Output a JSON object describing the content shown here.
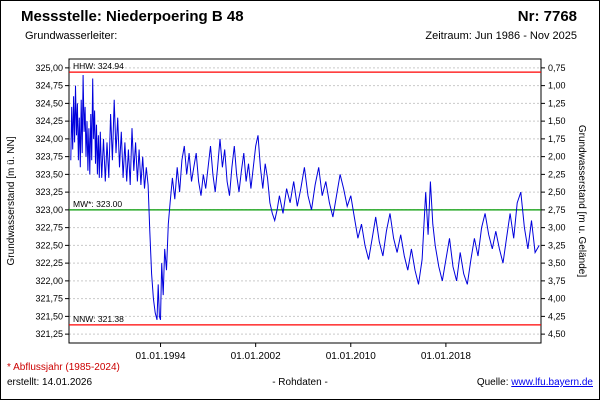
{
  "header": {
    "title": "Messstelle: Niederpoering B 48",
    "number": "Nr: 7768",
    "aquifer_label": "Grundwasserleiter:",
    "period": "Zeitraum: Jun 1986 - Nov 2025"
  },
  "footer": {
    "footnote": "* Abflussjahr (1985-2024)",
    "created": "erstellt: 14.01.2026",
    "data_type": "- Rohdaten -",
    "source_label": "Quelle:",
    "source_link": "www.lfu.bayern.de"
  },
  "chart_data": {
    "type": "line",
    "ylabel_left": "Grundwasserstand [m ü. NN]",
    "ylabel_right": "Grundwasserstand [m u. Gelände]",
    "xlim": [
      1986.3,
      2026.0
    ],
    "ylim": [
      321.125,
      325.125
    ],
    "x_ticks": [
      "01.01.1994",
      "01.01.2002",
      "01.01.2010",
      "01.01.2018"
    ],
    "x_tick_years": [
      1994,
      2002,
      2010,
      2018
    ],
    "y_ticks_left": [
      325.0,
      324.75,
      324.5,
      324.25,
      324.0,
      323.75,
      323.5,
      323.25,
      323.0,
      322.75,
      322.5,
      322.25,
      322.0,
      321.75,
      321.5,
      321.25
    ],
    "y_ticks_right": [
      0.75,
      1.0,
      1.25,
      1.5,
      1.75,
      2.0,
      2.25,
      2.5,
      2.75,
      3.0,
      3.25,
      3.5,
      3.75,
      4.0,
      4.25,
      4.5
    ],
    "grid_color": "#c9c9c9",
    "reference_lines": [
      {
        "name": "HHW",
        "label": "HHW: 324.94",
        "value": 324.94,
        "color": "#ff0000"
      },
      {
        "name": "MW",
        "label": "MW*: 323.00",
        "value": 323.0,
        "color": "#009900"
      },
      {
        "name": "NNW",
        "label": "NNW: 321.38",
        "value": 321.38,
        "color": "#ff0000"
      }
    ],
    "series": [
      {
        "name": "Grundwasserstand Rohdaten",
        "color": "#0000dd",
        "points": [
          [
            1986.45,
            323.7
          ],
          [
            1986.53,
            324.45
          ],
          [
            1986.61,
            323.85
          ],
          [
            1986.69,
            324.6
          ],
          [
            1986.77,
            323.95
          ],
          [
            1986.85,
            324.75
          ],
          [
            1986.93,
            324.05
          ],
          [
            1987.01,
            324.5
          ],
          [
            1987.09,
            323.7
          ],
          [
            1987.17,
            324.3
          ],
          [
            1987.25,
            323.6
          ],
          [
            1987.33,
            324.55
          ],
          [
            1987.41,
            323.8
          ],
          [
            1987.49,
            324.9
          ],
          [
            1987.57,
            324.1
          ],
          [
            1987.65,
            324.45
          ],
          [
            1987.73,
            323.75
          ],
          [
            1987.81,
            324.25
          ],
          [
            1987.89,
            323.55
          ],
          [
            1987.97,
            324.15
          ],
          [
            1988.05,
            323.5
          ],
          [
            1988.13,
            324.35
          ],
          [
            1988.21,
            323.7
          ],
          [
            1988.29,
            324.85
          ],
          [
            1988.37,
            324.0
          ],
          [
            1988.45,
            324.4
          ],
          [
            1988.53,
            323.65
          ],
          [
            1988.61,
            324.2
          ],
          [
            1988.69,
            323.5
          ],
          [
            1988.77,
            324.05
          ],
          [
            1988.85,
            323.45
          ],
          [
            1988.93,
            324.1
          ],
          [
            1989.05,
            323.45
          ],
          [
            1989.2,
            324.0
          ],
          [
            1989.35,
            323.4
          ],
          [
            1989.5,
            323.95
          ],
          [
            1989.65,
            323.45
          ],
          [
            1989.8,
            324.35
          ],
          [
            1989.95,
            323.7
          ],
          [
            1990.1,
            324.55
          ],
          [
            1990.25,
            323.8
          ],
          [
            1990.4,
            324.3
          ],
          [
            1990.55,
            323.6
          ],
          [
            1990.7,
            324.1
          ],
          [
            1990.85,
            323.45
          ],
          [
            1991.0,
            323.95
          ],
          [
            1991.15,
            323.4
          ],
          [
            1991.3,
            323.85
          ],
          [
            1991.45,
            323.35
          ],
          [
            1991.6,
            324.15
          ],
          [
            1991.75,
            323.55
          ],
          [
            1991.9,
            323.95
          ],
          [
            1992.05,
            323.4
          ],
          [
            1992.2,
            323.85
          ],
          [
            1992.35,
            323.35
          ],
          [
            1992.5,
            323.75
          ],
          [
            1992.65,
            323.3
          ],
          [
            1992.8,
            323.6
          ],
          [
            1992.95,
            323.35
          ],
          [
            1993.1,
            322.7
          ],
          [
            1993.25,
            322.1
          ],
          [
            1993.4,
            321.75
          ],
          [
            1993.55,
            321.55
          ],
          [
            1993.7,
            321.45
          ],
          [
            1993.8,
            321.95
          ],
          [
            1993.9,
            321.5
          ],
          [
            1994.0,
            321.45
          ],
          [
            1994.1,
            322.25
          ],
          [
            1994.22,
            321.8
          ],
          [
            1994.35,
            322.45
          ],
          [
            1994.5,
            322.15
          ],
          [
            1994.65,
            322.8
          ],
          [
            1994.8,
            323.1
          ],
          [
            1995.0,
            323.45
          ],
          [
            1995.2,
            323.15
          ],
          [
            1995.4,
            323.6
          ],
          [
            1995.6,
            323.25
          ],
          [
            1995.8,
            323.7
          ],
          [
            1996.0,
            323.9
          ],
          [
            1996.2,
            323.5
          ],
          [
            1996.4,
            323.8
          ],
          [
            1996.6,
            323.4
          ],
          [
            1996.8,
            323.6
          ],
          [
            1997.0,
            323.8
          ],
          [
            1997.2,
            323.4
          ],
          [
            1997.4,
            323.2
          ],
          [
            1997.6,
            323.5
          ],
          [
            1997.8,
            323.3
          ],
          [
            1998.0,
            323.6
          ],
          [
            1998.2,
            323.9
          ],
          [
            1998.4,
            323.5
          ],
          [
            1998.6,
            323.25
          ],
          [
            1998.8,
            323.6
          ],
          [
            1999.0,
            324.0
          ],
          [
            1999.2,
            323.6
          ],
          [
            1999.4,
            323.85
          ],
          [
            1999.6,
            323.4
          ],
          [
            1999.8,
            323.2
          ],
          [
            2000.0,
            323.6
          ],
          [
            2000.2,
            323.9
          ],
          [
            2000.4,
            323.5
          ],
          [
            2000.6,
            323.25
          ],
          [
            2000.8,
            323.55
          ],
          [
            2001.0,
            323.8
          ],
          [
            2001.2,
            323.4
          ],
          [
            2001.4,
            323.65
          ],
          [
            2001.6,
            323.3
          ],
          [
            2001.8,
            323.6
          ],
          [
            2002.0,
            323.9
          ],
          [
            2002.2,
            324.05
          ],
          [
            2002.4,
            323.6
          ],
          [
            2002.6,
            323.3
          ],
          [
            2002.8,
            323.65
          ],
          [
            2003.0,
            323.45
          ],
          [
            2003.2,
            323.1
          ],
          [
            2003.4,
            322.95
          ],
          [
            2003.6,
            322.85
          ],
          [
            2003.8,
            323.0
          ],
          [
            2004.0,
            323.2
          ],
          [
            2004.3,
            322.95
          ],
          [
            2004.6,
            323.3
          ],
          [
            2004.9,
            323.1
          ],
          [
            2005.2,
            323.4
          ],
          [
            2005.5,
            323.05
          ],
          [
            2005.8,
            323.3
          ],
          [
            2006.1,
            323.6
          ],
          [
            2006.4,
            323.2
          ],
          [
            2006.7,
            323.0
          ],
          [
            2007.0,
            323.35
          ],
          [
            2007.3,
            323.6
          ],
          [
            2007.6,
            323.2
          ],
          [
            2007.9,
            323.4
          ],
          [
            2008.2,
            323.1
          ],
          [
            2008.5,
            322.9
          ],
          [
            2008.8,
            323.2
          ],
          [
            2009.1,
            323.5
          ],
          [
            2009.4,
            323.3
          ],
          [
            2009.7,
            323.05
          ],
          [
            2010.0,
            323.2
          ],
          [
            2010.3,
            322.9
          ],
          [
            2010.6,
            322.6
          ],
          [
            2010.9,
            322.8
          ],
          [
            2011.2,
            322.5
          ],
          [
            2011.5,
            322.3
          ],
          [
            2011.8,
            322.6
          ],
          [
            2012.1,
            322.9
          ],
          [
            2012.4,
            322.55
          ],
          [
            2012.7,
            322.35
          ],
          [
            2013.0,
            322.7
          ],
          [
            2013.3,
            322.95
          ],
          [
            2013.6,
            322.6
          ],
          [
            2013.9,
            322.4
          ],
          [
            2014.2,
            322.65
          ],
          [
            2014.5,
            322.35
          ],
          [
            2014.8,
            322.15
          ],
          [
            2015.1,
            322.45
          ],
          [
            2015.4,
            322.15
          ],
          [
            2015.7,
            321.95
          ],
          [
            2016.0,
            322.3
          ],
          [
            2016.3,
            323.25
          ],
          [
            2016.5,
            322.65
          ],
          [
            2016.7,
            323.4
          ],
          [
            2016.9,
            322.8
          ],
          [
            2017.1,
            322.5
          ],
          [
            2017.4,
            322.2
          ],
          [
            2017.7,
            322.0
          ],
          [
            2018.0,
            322.3
          ],
          [
            2018.3,
            322.6
          ],
          [
            2018.6,
            322.2
          ],
          [
            2018.9,
            322.0
          ],
          [
            2019.2,
            322.4
          ],
          [
            2019.5,
            322.1
          ],
          [
            2019.8,
            321.95
          ],
          [
            2020.1,
            322.3
          ],
          [
            2020.4,
            322.6
          ],
          [
            2020.7,
            322.35
          ],
          [
            2021.0,
            322.75
          ],
          [
            2021.3,
            322.95
          ],
          [
            2021.6,
            322.65
          ],
          [
            2021.9,
            322.45
          ],
          [
            2022.2,
            322.7
          ],
          [
            2022.5,
            322.45
          ],
          [
            2022.8,
            322.25
          ],
          [
            2023.1,
            322.6
          ],
          [
            2023.4,
            322.95
          ],
          [
            2023.7,
            322.6
          ],
          [
            2024.0,
            323.1
          ],
          [
            2024.3,
            323.25
          ],
          [
            2024.6,
            322.75
          ],
          [
            2024.9,
            322.45
          ],
          [
            2025.2,
            322.85
          ],
          [
            2025.5,
            322.4
          ],
          [
            2025.85,
            322.5
          ]
        ]
      }
    ]
  }
}
